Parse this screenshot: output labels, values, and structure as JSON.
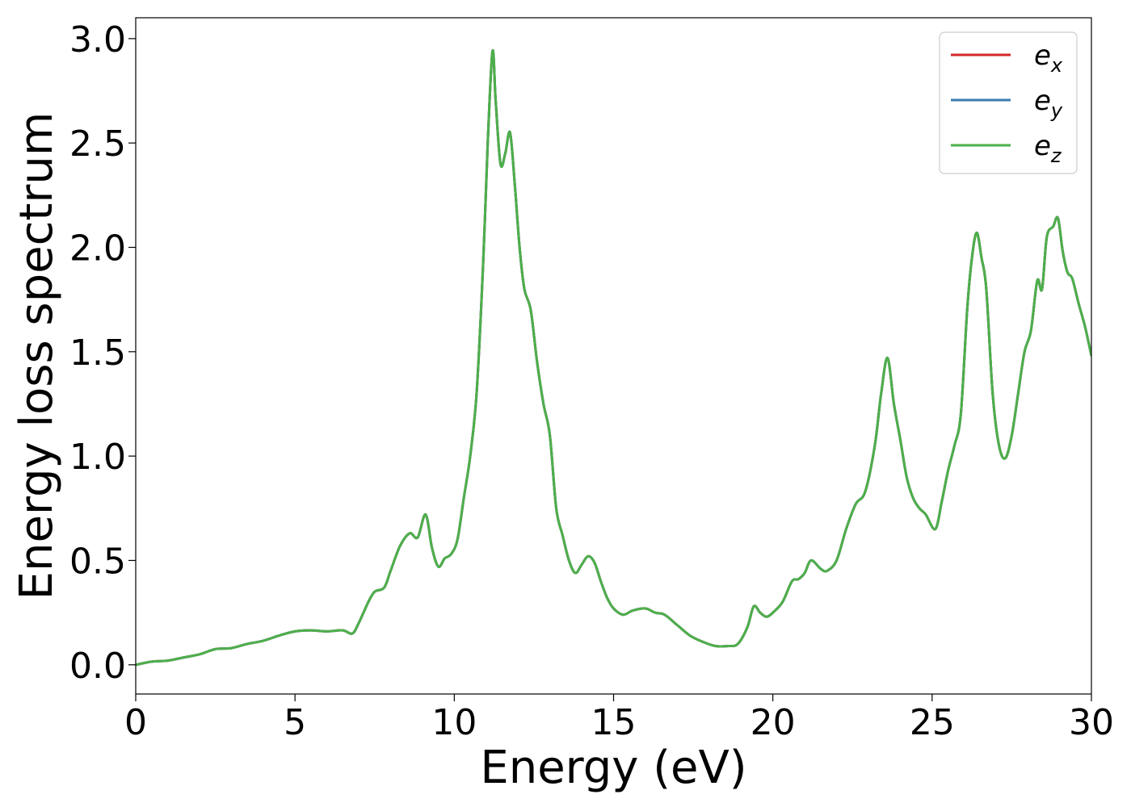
{
  "chart_data": {
    "type": "line",
    "xlabel": "Energy (eV)",
    "ylabel": "Energy loss spectrum",
    "xlim": [
      0,
      30
    ],
    "ylim": [
      -0.14,
      3.1
    ],
    "xticks": [
      0,
      5,
      10,
      15,
      20,
      25,
      30
    ],
    "xtick_labels": [
      "0",
      "5",
      "10",
      "15",
      "20",
      "25",
      "30"
    ],
    "yticks": [
      0.0,
      0.5,
      1.0,
      1.5,
      2.0,
      2.5,
      3.0
    ],
    "ytick_labels": [
      "0.0",
      "0.5",
      "1.0",
      "1.5",
      "2.0",
      "2.5",
      "3.0"
    ],
    "grid": false,
    "legend_position": "top-right",
    "series": [
      {
        "name": "e_x",
        "legend_base": "e",
        "legend_sub": "x",
        "color": "#d62728"
      },
      {
        "name": "e_y",
        "legend_base": "e",
        "legend_sub": "y",
        "color": "#3a7cb0"
      },
      {
        "name": "e_z",
        "legend_base": "e",
        "legend_sub": "z",
        "color": "#4daf4a"
      }
    ],
    "x": [
      0,
      0.5,
      1.0,
      1.5,
      2.0,
      2.5,
      3.0,
      3.5,
      4.0,
      4.5,
      5.0,
      5.5,
      6.0,
      6.5,
      6.8,
      7.0,
      7.3,
      7.5,
      7.8,
      8.0,
      8.3,
      8.6,
      8.85,
      9.1,
      9.3,
      9.5,
      9.7,
      9.9,
      10.1,
      10.3,
      10.5,
      10.7,
      10.9,
      11.05,
      11.2,
      11.3,
      11.45,
      11.6,
      11.75,
      11.9,
      12.05,
      12.2,
      12.4,
      12.6,
      12.8,
      13.0,
      13.2,
      13.4,
      13.6,
      13.8,
      14.0,
      14.2,
      14.4,
      14.6,
      14.8,
      15.0,
      15.3,
      15.6,
      16.0,
      16.3,
      16.6,
      17.0,
      17.4,
      17.8,
      18.2,
      18.6,
      18.9,
      19.2,
      19.4,
      19.6,
      19.8,
      20.0,
      20.3,
      20.6,
      20.8,
      21.0,
      21.2,
      21.5,
      21.7,
      22.0,
      22.3,
      22.6,
      22.9,
      23.2,
      23.4,
      23.6,
      23.8,
      24.0,
      24.2,
      24.4,
      24.6,
      24.8,
      25.1,
      25.3,
      25.5,
      25.7,
      25.9,
      26.1,
      26.25,
      26.4,
      26.55,
      26.7,
      26.9,
      27.1,
      27.3,
      27.5,
      27.7,
      27.9,
      28.1,
      28.3,
      28.45,
      28.6,
      28.8,
      28.95,
      29.1,
      29.25,
      29.4,
      29.6,
      29.8,
      30.0
    ],
    "y": [
      0.0,
      0.015,
      0.02,
      0.035,
      0.05,
      0.075,
      0.08,
      0.1,
      0.115,
      0.14,
      0.16,
      0.165,
      0.16,
      0.165,
      0.15,
      0.2,
      0.3,
      0.35,
      0.37,
      0.45,
      0.57,
      0.63,
      0.61,
      0.72,
      0.56,
      0.47,
      0.51,
      0.53,
      0.6,
      0.8,
      1.0,
      1.3,
      1.9,
      2.5,
      2.94,
      2.7,
      2.4,
      2.45,
      2.55,
      2.3,
      2.0,
      1.8,
      1.7,
      1.45,
      1.25,
      1.1,
      0.75,
      0.62,
      0.5,
      0.44,
      0.48,
      0.52,
      0.49,
      0.4,
      0.32,
      0.27,
      0.24,
      0.26,
      0.27,
      0.25,
      0.24,
      0.19,
      0.14,
      0.11,
      0.09,
      0.09,
      0.1,
      0.18,
      0.28,
      0.25,
      0.23,
      0.25,
      0.3,
      0.4,
      0.41,
      0.44,
      0.5,
      0.46,
      0.45,
      0.5,
      0.65,
      0.77,
      0.83,
      1.05,
      1.3,
      1.47,
      1.25,
      1.08,
      0.9,
      0.8,
      0.75,
      0.72,
      0.65,
      0.78,
      0.93,
      1.05,
      1.2,
      1.7,
      1.95,
      2.07,
      1.95,
      1.8,
      1.3,
      1.05,
      0.99,
      1.1,
      1.3,
      1.5,
      1.6,
      1.84,
      1.8,
      2.05,
      2.1,
      2.14,
      1.98,
      1.88,
      1.85,
      1.73,
      1.62,
      1.48
    ]
  }
}
